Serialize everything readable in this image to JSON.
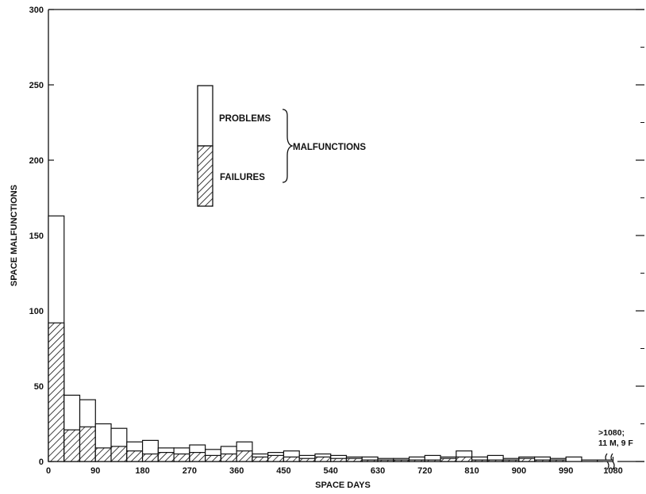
{
  "chart_data": {
    "type": "bar",
    "stacked": true,
    "xlabel": "SPACE DAYS",
    "ylabel": "SPACE MALFUNCTIONS",
    "xlim": [
      0,
      1140
    ],
    "ylim": [
      0,
      300
    ],
    "bin_width": 30,
    "x_ticks": [
      0,
      90,
      180,
      270,
      360,
      450,
      540,
      630,
      720,
      810,
      900,
      990,
      1080
    ],
    "y_ticks": [
      0,
      50,
      100,
      150,
      200,
      250,
      300
    ],
    "bin_starts": [
      0,
      30,
      60,
      90,
      120,
      150,
      180,
      210,
      240,
      270,
      300,
      330,
      360,
      390,
      420,
      450,
      480,
      510,
      540,
      570,
      600,
      630,
      660,
      690,
      720,
      750,
      780,
      810,
      840,
      870,
      900,
      930,
      960,
      990,
      1020,
      1050
    ],
    "series": [
      {
        "name": "FAILURES",
        "values": [
          92,
          21,
          23,
          9,
          10,
          7,
          5,
          6,
          5,
          6,
          4,
          5,
          7,
          3,
          4,
          3,
          2,
          3,
          2,
          2,
          1,
          1,
          1,
          1,
          1,
          2,
          3,
          1,
          1,
          1,
          2,
          1,
          1,
          0,
          0,
          0
        ]
      },
      {
        "name": "MALFUNCTIONS",
        "values": [
          163,
          44,
          41,
          25,
          22,
          13,
          14,
          9,
          9,
          11,
          8,
          10,
          13,
          5,
          6,
          7,
          4,
          5,
          4,
          3,
          3,
          2,
          2,
          3,
          4,
          3,
          7,
          3,
          4,
          2,
          3,
          3,
          2,
          3,
          1,
          1
        ]
      }
    ],
    "legend": {
      "position": "upper-center",
      "problems_label": "PROBLEMS",
      "failures_label": "FAILURES",
      "group_label": "MALFUNCTIONS"
    },
    "annotation": {
      "line1": ">1080;",
      "line2": "11 M, 9 F"
    }
  }
}
